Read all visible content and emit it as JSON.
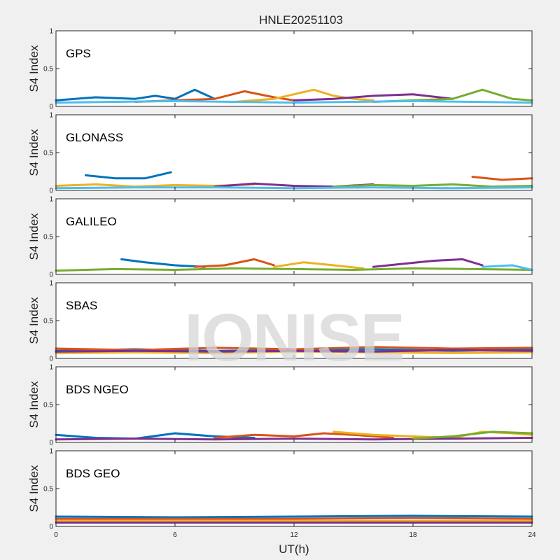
{
  "chart_data": {
    "type": "line",
    "title": "HNLE20251103",
    "xlabel": "UT(h)",
    "ylabel": "S4 Index",
    "xlim": [
      0,
      24
    ],
    "ylim": [
      0,
      1
    ],
    "xticks": [
      "0",
      "6",
      "12",
      "18",
      "24"
    ],
    "yticks": [
      "0",
      "0.5",
      "1"
    ],
    "grid": false,
    "watermark": "IONISE",
    "series_colors": [
      "#0072BD",
      "#D95319",
      "#EDB120",
      "#7E2F8E",
      "#77AC30",
      "#4DBEEE",
      "#A2142F"
    ],
    "panels": [
      {
        "label": "GPS",
        "series": [
          {
            "x": [
              0,
              2,
              4,
              5,
              6,
              7,
              8
            ],
            "y": [
              0.08,
              0.12,
              0.1,
              0.14,
              0.1,
              0.22,
              0.1
            ]
          },
          {
            "x": [
              4,
              6,
              8,
              9.5,
              11,
              12
            ],
            "y": [
              0.06,
              0.08,
              0.1,
              0.2,
              0.12,
              0.08
            ]
          },
          {
            "x": [
              9,
              11,
              13,
              14,
              15,
              16
            ],
            "y": [
              0.06,
              0.1,
              0.22,
              0.14,
              0.1,
              0.08
            ]
          },
          {
            "x": [
              12,
              14,
              16,
              18,
              20
            ],
            "y": [
              0.08,
              0.1,
              0.14,
              0.16,
              0.1
            ]
          },
          {
            "x": [
              16,
              18,
              20,
              21.5,
              23,
              24
            ],
            "y": [
              0.06,
              0.08,
              0.1,
              0.22,
              0.1,
              0.08
            ]
          },
          {
            "x": [
              0,
              3,
              6,
              9,
              12,
              15,
              18,
              21,
              24
            ],
            "y": [
              0.05,
              0.06,
              0.07,
              0.06,
              0.05,
              0.06,
              0.07,
              0.06,
              0.05
            ]
          }
        ]
      },
      {
        "label": "GLONASS",
        "series": [
          {
            "x": [
              1.5,
              3,
              4.5,
              5.8
            ],
            "y": [
              0.2,
              0.16,
              0.16,
              0.24
            ]
          },
          {
            "x": [
              21,
              22.5,
              24
            ],
            "y": [
              0.18,
              0.14,
              0.16
            ]
          },
          {
            "x": [
              0,
              2,
              4,
              6,
              8,
              10
            ],
            "y": [
              0.06,
              0.08,
              0.05,
              0.07,
              0.06,
              0.08
            ]
          },
          {
            "x": [
              8,
              10,
              12,
              14,
              16
            ],
            "y": [
              0.05,
              0.09,
              0.06,
              0.05,
              0.08
            ]
          },
          {
            "x": [
              14,
              16,
              18,
              20,
              22,
              24
            ],
            "y": [
              0.05,
              0.07,
              0.06,
              0.08,
              0.05,
              0.06
            ]
          },
          {
            "x": [
              0,
              4,
              8,
              12,
              16,
              20,
              24
            ],
            "y": [
              0.03,
              0.04,
              0.04,
              0.03,
              0.04,
              0.03,
              0.04
            ]
          }
        ]
      },
      {
        "label": "GALILEO",
        "series": [
          {
            "x": [
              3.3,
              4.5,
              6,
              7.5
            ],
            "y": [
              0.2,
              0.16,
              0.12,
              0.1
            ]
          },
          {
            "x": [
              7,
              8.5,
              10,
              11
            ],
            "y": [
              0.1,
              0.12,
              0.2,
              0.12
            ]
          },
          {
            "x": [
              11,
              12.5,
              14,
              15.5
            ],
            "y": [
              0.1,
              0.16,
              0.12,
              0.08
            ]
          },
          {
            "x": [
              16,
              17.5,
              19,
              20.5,
              21.5
            ],
            "y": [
              0.1,
              0.14,
              0.18,
              0.2,
              0.12
            ]
          },
          {
            "x": [
              0,
              3,
              6,
              9,
              12,
              15,
              18,
              21,
              24
            ],
            "y": [
              0.05,
              0.07,
              0.06,
              0.08,
              0.07,
              0.06,
              0.08,
              0.07,
              0.06
            ]
          },
          {
            "x": [
              21.5,
              23,
              24
            ],
            "y": [
              0.1,
              0.12,
              0.06
            ]
          }
        ]
      },
      {
        "label": "SBAS",
        "series": [
          {
            "x": [
              0,
              4,
              8,
              12,
              16,
              20,
              24
            ],
            "y": [
              0.1,
              0.12,
              0.1,
              0.11,
              0.12,
              0.1,
              0.12
            ]
          },
          {
            "x": [
              0,
              4,
              8,
              12,
              16,
              20,
              24
            ],
            "y": [
              0.13,
              0.11,
              0.14,
              0.12,
              0.15,
              0.13,
              0.14
            ]
          },
          {
            "x": [
              0,
              4,
              8,
              12,
              16,
              20,
              24
            ],
            "y": [
              0.07,
              0.08,
              0.07,
              0.09,
              0.08,
              0.07,
              0.08
            ]
          },
          {
            "x": [
              0,
              4,
              8,
              12,
              16,
              20,
              24
            ],
            "y": [
              0.09,
              0.1,
              0.09,
              0.1,
              0.09,
              0.11,
              0.1
            ]
          }
        ]
      },
      {
        "label": "BDS NGEO",
        "series": [
          {
            "x": [
              0,
              2,
              4,
              6,
              8,
              10
            ],
            "y": [
              0.1,
              0.06,
              0.05,
              0.12,
              0.08,
              0.06
            ]
          },
          {
            "x": [
              8,
              10,
              12,
              13.5,
              15,
              17
            ],
            "y": [
              0.06,
              0.1,
              0.08,
              0.12,
              0.1,
              0.06
            ]
          },
          {
            "x": [
              14,
              16,
              18,
              20,
              21.5,
              23,
              24
            ],
            "y": [
              0.14,
              0.1,
              0.08,
              0.06,
              0.14,
              0.12,
              0.1
            ]
          },
          {
            "x": [
              0,
              4,
              8,
              12,
              16,
              20,
              24
            ],
            "y": [
              0.04,
              0.05,
              0.04,
              0.05,
              0.04,
              0.05,
              0.06
            ]
          },
          {
            "x": [
              18,
              20,
              22,
              24
            ],
            "y": [
              0.05,
              0.08,
              0.14,
              0.12
            ]
          }
        ]
      },
      {
        "label": "BDS GEO",
        "series": [
          {
            "x": [
              0,
              6,
              12,
              18,
              24
            ],
            "y": [
              0.13,
              0.12,
              0.13,
              0.14,
              0.13
            ]
          },
          {
            "x": [
              0,
              6,
              12,
              18,
              24
            ],
            "y": [
              0.1,
              0.1,
              0.1,
              0.11,
              0.1
            ]
          },
          {
            "x": [
              0,
              6,
              12,
              18,
              24
            ],
            "y": [
              0.07,
              0.07,
              0.07,
              0.07,
              0.07
            ]
          },
          {
            "x": [
              0,
              6,
              12,
              18,
              24
            ],
            "y": [
              0.05,
              0.05,
              0.05,
              0.05,
              0.05
            ]
          }
        ]
      }
    ]
  }
}
